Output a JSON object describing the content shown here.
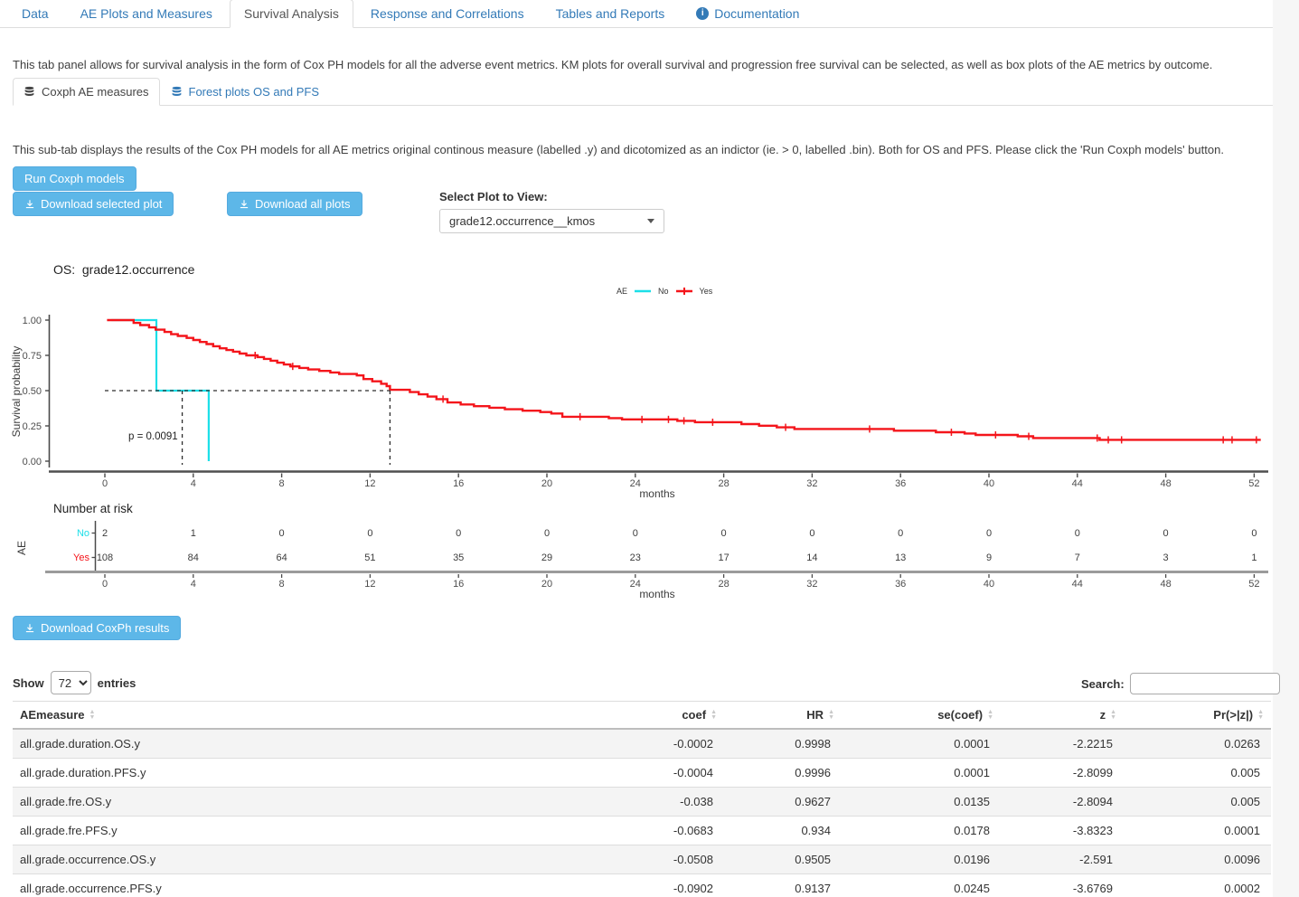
{
  "tabs": [
    {
      "label": "Data",
      "active": false
    },
    {
      "label": "AE Plots and Measures",
      "active": false
    },
    {
      "label": "Survival Analysis",
      "active": true
    },
    {
      "label": "Response and Correlations",
      "active": false
    },
    {
      "label": "Tables and Reports",
      "active": false
    },
    {
      "label": "Documentation",
      "active": false,
      "icon": "info"
    }
  ],
  "descriptions": {
    "tab": "This tab panel allows for survival analysis in the form of Cox PH models for all the adverse event metrics. KM plots for overall survival and progression free survival can be selected, as well as box plots of the AE metrics by outcome.",
    "subtab": "This sub-tab displays the results of the Cox PH models for all AE metrics original continous measure (labelled .y) and dicotomized as an indictor (ie. > 0, labelled .bin). Both for OS and PFS. Please click the 'Run Coxph models' button."
  },
  "subtabs": [
    {
      "label": "Coxph AE measures",
      "active": true
    },
    {
      "label": "Forest plots OS and PFS",
      "active": false
    }
  ],
  "buttons": {
    "run": "Run Coxph models",
    "download_selected": "Download selected plot",
    "download_all": "Download all plots",
    "download_results": "Download CoxPh results"
  },
  "plot_select": {
    "label": "Select Plot to View:",
    "value": "grade12.occurrence__kmos"
  },
  "chart_data": {
    "type": "line",
    "title": "OS:  grade12.occurrence",
    "xlabel": "months",
    "ylabel": "Survival probability",
    "legend_title": "AE",
    "xlim": [
      0,
      52
    ],
    "ylim": [
      0,
      1
    ],
    "xticks": [
      0,
      4,
      8,
      12,
      16,
      20,
      24,
      28,
      32,
      36,
      40,
      44,
      48,
      52
    ],
    "yticks": [
      0.0,
      0.25,
      0.5,
      0.75,
      1.0
    ],
    "p_value_label": "p = 0.0091",
    "series": [
      {
        "name": "No",
        "color": "#1CDFE8",
        "steps": [
          [
            0.3,
            1.0
          ],
          [
            2.33,
            0.5
          ],
          [
            4.7,
            0.0
          ]
        ],
        "censors": []
      },
      {
        "name": "Yes",
        "color": "#F4151B",
        "steps": [
          [
            0.1,
            1.0
          ],
          [
            1.3,
            0.98
          ],
          [
            1.6,
            0.965
          ],
          [
            2.0,
            0.948
          ],
          [
            2.3,
            0.932
          ],
          [
            2.7,
            0.916
          ],
          [
            3.0,
            0.9
          ],
          [
            3.3,
            0.888
          ],
          [
            3.7,
            0.874
          ],
          [
            4.0,
            0.859
          ],
          [
            4.3,
            0.845
          ],
          [
            4.6,
            0.83
          ],
          [
            4.9,
            0.815
          ],
          [
            5.2,
            0.8
          ],
          [
            5.5,
            0.788
          ],
          [
            5.8,
            0.776
          ],
          [
            6.1,
            0.763
          ],
          [
            6.4,
            0.75
          ],
          [
            6.9,
            0.738
          ],
          [
            7.2,
            0.725
          ],
          [
            7.5,
            0.712
          ],
          [
            7.8,
            0.698
          ],
          [
            8.1,
            0.685
          ],
          [
            8.4,
            0.672
          ],
          [
            8.8,
            0.661
          ],
          [
            9.2,
            0.65
          ],
          [
            9.7,
            0.64
          ],
          [
            10.2,
            0.629
          ],
          [
            10.6,
            0.618
          ],
          [
            11.4,
            0.608
          ],
          [
            11.7,
            0.582
          ],
          [
            12.1,
            0.566
          ],
          [
            12.5,
            0.549
          ],
          [
            12.75,
            0.532
          ],
          [
            12.9,
            0.506
          ],
          [
            13.8,
            0.49
          ],
          [
            14.2,
            0.474
          ],
          [
            14.6,
            0.458
          ],
          [
            15.0,
            0.44
          ],
          [
            15.5,
            0.416
          ],
          [
            16.1,
            0.402
          ],
          [
            16.7,
            0.39
          ],
          [
            17.4,
            0.379
          ],
          [
            18.1,
            0.368
          ],
          [
            18.9,
            0.358
          ],
          [
            19.7,
            0.348
          ],
          [
            20.2,
            0.338
          ],
          [
            20.7,
            0.315
          ],
          [
            22.8,
            0.305
          ],
          [
            23.4,
            0.296
          ],
          [
            25.9,
            0.286
          ],
          [
            26.7,
            0.276
          ],
          [
            28.8,
            0.263
          ],
          [
            29.6,
            0.251
          ],
          [
            30.4,
            0.24
          ],
          [
            31.2,
            0.228
          ],
          [
            35.7,
            0.216
          ],
          [
            37.6,
            0.205
          ],
          [
            38.9,
            0.196
          ],
          [
            39.4,
            0.186
          ],
          [
            41.3,
            0.176
          ],
          [
            42.0,
            0.164
          ],
          [
            45.0,
            0.151
          ],
          [
            52.3,
            0.151
          ]
        ],
        "censors": [
          [
            6.8,
            0.75
          ],
          [
            8.5,
            0.672
          ],
          [
            15.3,
            0.44
          ],
          [
            21.5,
            0.315
          ],
          [
            24.3,
            0.296
          ],
          [
            25.5,
            0.296
          ],
          [
            26.2,
            0.286
          ],
          [
            27.5,
            0.276
          ],
          [
            30.8,
            0.24
          ],
          [
            34.6,
            0.228
          ],
          [
            38.3,
            0.205
          ],
          [
            40.3,
            0.186
          ],
          [
            41.8,
            0.176
          ],
          [
            44.9,
            0.164
          ],
          [
            45.4,
            0.151
          ],
          [
            46.0,
            0.151
          ],
          [
            50.6,
            0.151
          ],
          [
            51.0,
            0.151
          ],
          [
            52.1,
            0.151
          ]
        ]
      }
    ],
    "medians": {
      "y": 0.5,
      "h_from": 0,
      "h_to": 12.9,
      "x_lines": [
        3.5,
        12.9
      ]
    },
    "risk_table": {
      "title": "Number at risk",
      "axis_label": "AE",
      "times": [
        0,
        4,
        8,
        12,
        16,
        20,
        24,
        28,
        32,
        36,
        40,
        44,
        48,
        52
      ],
      "rows": [
        {
          "name": "No",
          "color": "#1CDFE8",
          "values": [
            2,
            1,
            0,
            0,
            0,
            0,
            0,
            0,
            0,
            0,
            0,
            0,
            0,
            0
          ]
        },
        {
          "name": "Yes",
          "color": "#F4151B",
          "values": [
            108,
            84,
            64,
            51,
            35,
            29,
            23,
            17,
            14,
            13,
            9,
            7,
            3,
            1
          ]
        }
      ]
    }
  },
  "table": {
    "show_label": "Show",
    "page_length": "72",
    "entries_label": "entries",
    "search_label": "Search:",
    "search_value": "",
    "columns": [
      "AEmeasure",
      "coef",
      "HR",
      "se(coef)",
      "z",
      "Pr(>|z|)"
    ],
    "rows": [
      [
        "all.grade.duration.OS.y",
        "-0.0002",
        "0.9998",
        "0.0001",
        "-2.2215",
        "0.0263"
      ],
      [
        "all.grade.duration.PFS.y",
        "-0.0004",
        "0.9996",
        "0.0001",
        "-2.8099",
        "0.005"
      ],
      [
        "all.grade.fre.OS.y",
        "-0.038",
        "0.9627",
        "0.0135",
        "-2.8094",
        "0.005"
      ],
      [
        "all.grade.fre.PFS.y",
        "-0.0683",
        "0.934",
        "0.0178",
        "-3.8323",
        "0.0001"
      ],
      [
        "all.grade.occurrence.OS.y",
        "-0.0508",
        "0.9505",
        "0.0196",
        "-2.591",
        "0.0096"
      ],
      [
        "all.grade.occurrence.PFS.y",
        "-0.0902",
        "0.9137",
        "0.0245",
        "-3.6769",
        "0.0002"
      ]
    ]
  }
}
